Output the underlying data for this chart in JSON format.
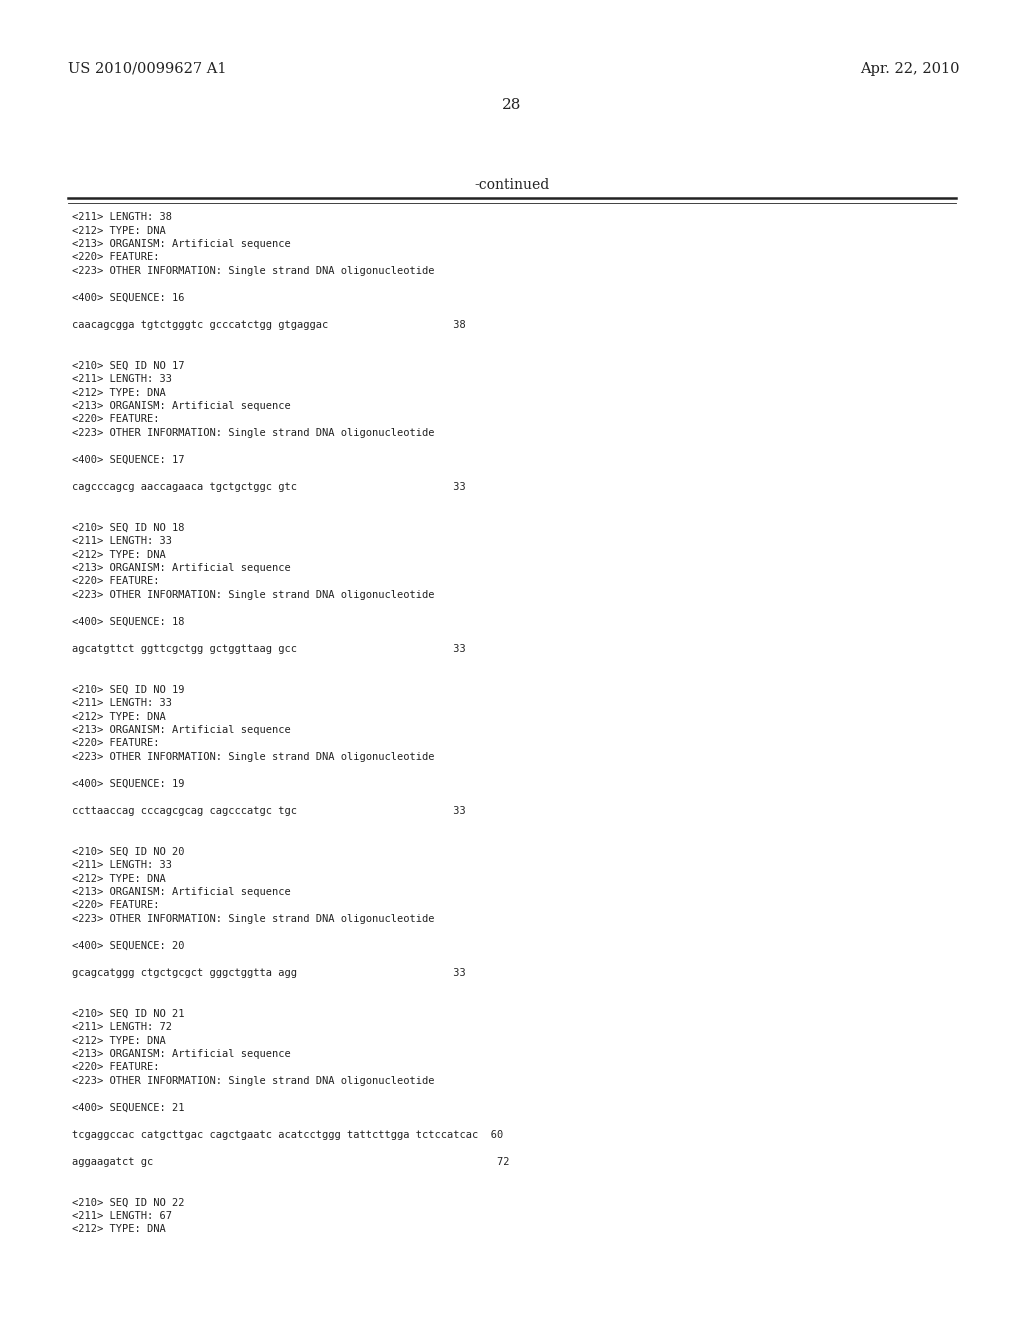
{
  "bg_color": "#ffffff",
  "header_left": "US 2010/0099627 A1",
  "header_right": "Apr. 22, 2010",
  "page_number": "28",
  "continued_label": "-continued",
  "lines": [
    "<211> LENGTH: 38",
    "<212> TYPE: DNA",
    "<213> ORGANISM: Artificial sequence",
    "<220> FEATURE:",
    "<223> OTHER INFORMATION: Single strand DNA oligonucleotide",
    "",
    "<400> SEQUENCE: 16",
    "",
    "caacagcgga tgtctgggtc gcccatctgg gtgaggac                    38",
    "",
    "",
    "<210> SEQ ID NO 17",
    "<211> LENGTH: 33",
    "<212> TYPE: DNA",
    "<213> ORGANISM: Artificial sequence",
    "<220> FEATURE:",
    "<223> OTHER INFORMATION: Single strand DNA oligonucleotide",
    "",
    "<400> SEQUENCE: 17",
    "",
    "cagcccagcg aaccagaaca tgctgctggc gtc                         33",
    "",
    "",
    "<210> SEQ ID NO 18",
    "<211> LENGTH: 33",
    "<212> TYPE: DNA",
    "<213> ORGANISM: Artificial sequence",
    "<220> FEATURE:",
    "<223> OTHER INFORMATION: Single strand DNA oligonucleotide",
    "",
    "<400> SEQUENCE: 18",
    "",
    "agcatgttct ggttcgctgg gctggttaag gcc                         33",
    "",
    "",
    "<210> SEQ ID NO 19",
    "<211> LENGTH: 33",
    "<212> TYPE: DNA",
    "<213> ORGANISM: Artificial sequence",
    "<220> FEATURE:",
    "<223> OTHER INFORMATION: Single strand DNA oligonucleotide",
    "",
    "<400> SEQUENCE: 19",
    "",
    "ccttaaccag cccagcgcag cagcccatgc tgc                         33",
    "",
    "",
    "<210> SEQ ID NO 20",
    "<211> LENGTH: 33",
    "<212> TYPE: DNA",
    "<213> ORGANISM: Artificial sequence",
    "<220> FEATURE:",
    "<223> OTHER INFORMATION: Single strand DNA oligonucleotide",
    "",
    "<400> SEQUENCE: 20",
    "",
    "gcagcatggg ctgctgcgct gggctggtta agg                         33",
    "",
    "",
    "<210> SEQ ID NO 21",
    "<211> LENGTH: 72",
    "<212> TYPE: DNA",
    "<213> ORGANISM: Artificial sequence",
    "<220> FEATURE:",
    "<223> OTHER INFORMATION: Single strand DNA oligonucleotide",
    "",
    "<400> SEQUENCE: 21",
    "",
    "tcgaggccac catgcttgac cagctgaatc acatcctggg tattcttgga tctccatcac  60",
    "",
    "aggaagatct gc                                                       72",
    "",
    "",
    "<210> SEQ ID NO 22",
    "<211> LENGTH: 67",
    "<212> TYPE: DNA"
  ],
  "monospace_fontsize": 7.5,
  "header_fontsize": 10.5,
  "page_num_fontsize": 11,
  "continued_fontsize": 10,
  "text_color": "#222222"
}
